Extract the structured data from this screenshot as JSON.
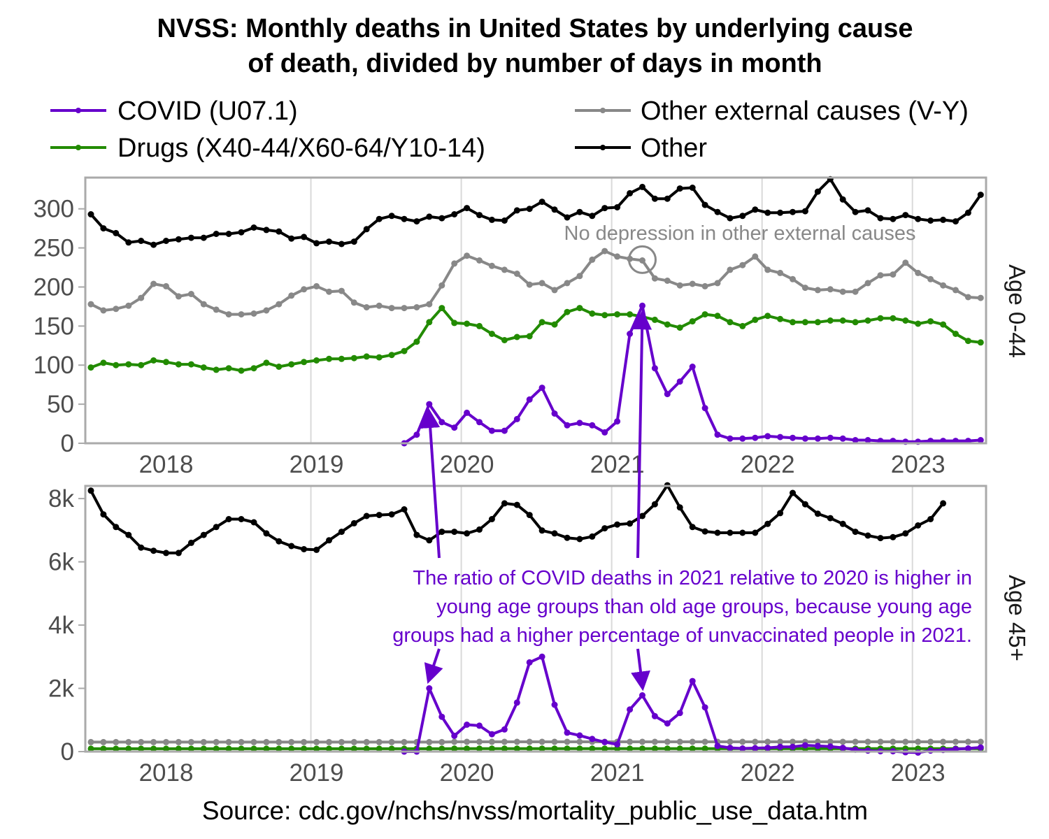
{
  "chart_data": {
    "type": "line",
    "title": "NVSS: Monthly deaths in United States by underlying cause of death, divided by number of days in month",
    "title_lines": [
      "NVSS: Monthly deaths in United States by underlying cause",
      "of death, divided by number of days in month"
    ],
    "caption": "Source: cdc.gov/nchs/nvss/mortality_public_use_data.htm",
    "legend_position": "top",
    "legend": [
      {
        "key": "covid",
        "label": "COVID (U07.1)",
        "color": "#6600cc"
      },
      {
        "key": "drugs",
        "label": "Drugs (X40-44/X60-64/Y10-14)",
        "color": "#228b00"
      },
      {
        "key": "other_external",
        "label": "Other external causes (V-Y)",
        "color": "#888888"
      },
      {
        "key": "other",
        "label": "Other",
        "color": "#000000"
      }
    ],
    "x": {
      "start": "2017-07",
      "end": "2023-06",
      "frequency": "monthly",
      "count": 72,
      "ticks": [
        {
          "label": "2018",
          "month_index": 6
        },
        {
          "label": "2019",
          "month_index": 18
        },
        {
          "label": "2020",
          "month_index": 30
        },
        {
          "label": "2021",
          "month_index": 42
        },
        {
          "label": "2022",
          "month_index": 54
        },
        {
          "label": "2023",
          "month_index": 66
        }
      ],
      "gridlines_at_month_index": [
        18,
        30,
        42,
        54,
        66,
        78
      ],
      "gridlines_note": "vertical gridlines at January of 2019..2023"
    },
    "panels": [
      {
        "strip": "Age 0-44",
        "ylim": [
          0,
          340
        ],
        "yticks": [
          {
            "value": 0,
            "label": "0"
          },
          {
            "value": 50,
            "label": "50"
          },
          {
            "value": 100,
            "label": "100"
          },
          {
            "value": 150,
            "label": "150"
          },
          {
            "value": 200,
            "label": "200"
          },
          {
            "value": 250,
            "label": "250"
          },
          {
            "value": 300,
            "label": "300"
          }
        ],
        "series": {
          "other": [
            293,
            275,
            269,
            257,
            259,
            254,
            259,
            261,
            263,
            263,
            268,
            268,
            270,
            276,
            273,
            271,
            262,
            264,
            256,
            258,
            255,
            258,
            274,
            287,
            291,
            287,
            284,
            290,
            288,
            293,
            301,
            292,
            286,
            285,
            298,
            300,
            309,
            299,
            289,
            296,
            291,
            301,
            302,
            320,
            328,
            313,
            313,
            326,
            327,
            305,
            296,
            288,
            291,
            299,
            295,
            295,
            296,
            297,
            322,
            338,
            312,
            296,
            298,
            288,
            287,
            292,
            287,
            285,
            286,
            284,
            295,
            318
          ],
          "other_external": [
            178,
            170,
            172,
            176,
            186,
            204,
            201,
            188,
            191,
            178,
            171,
            165,
            165,
            166,
            170,
            178,
            189,
            197,
            201,
            194,
            195,
            180,
            174,
            176,
            173,
            173,
            174,
            178,
            202,
            230,
            240,
            234,
            227,
            222,
            217,
            203,
            205,
            196,
            205,
            214,
            235,
            246,
            239,
            236,
            234,
            211,
            208,
            202,
            204,
            201,
            205,
            222,
            228,
            239,
            222,
            218,
            210,
            199,
            196,
            197,
            194,
            194,
            205,
            215,
            216,
            231,
            218,
            210,
            202,
            196,
            187,
            186
          ],
          "drugs": [
            97,
            103,
            100,
            101,
            100,
            106,
            104,
            101,
            101,
            97,
            94,
            96,
            93,
            96,
            103,
            98,
            101,
            104,
            106,
            108,
            108,
            109,
            111,
            110,
            113,
            118,
            130,
            155,
            173,
            154,
            153,
            150,
            140,
            132,
            136,
            137,
            155,
            152,
            168,
            173,
            166,
            164,
            165,
            165,
            162,
            158,
            152,
            148,
            156,
            165,
            163,
            155,
            150,
            158,
            163,
            159,
            155,
            155,
            155,
            157,
            157,
            155,
            157,
            160,
            160,
            157,
            153,
            156,
            152,
            140,
            131,
            129
          ],
          "covid": [
            null,
            null,
            null,
            null,
            null,
            null,
            null,
            null,
            null,
            null,
            null,
            null,
            null,
            null,
            null,
            null,
            null,
            null,
            null,
            null,
            null,
            null,
            null,
            null,
            null,
            0,
            11,
            50,
            27,
            20,
            39,
            27,
            16,
            16,
            31,
            56,
            71,
            38,
            23,
            26,
            23,
            14,
            28,
            140,
            176,
            96,
            63,
            79,
            98,
            45,
            11,
            6,
            6,
            7,
            9,
            8,
            7,
            6,
            6,
            7,
            6,
            4,
            4,
            3,
            3,
            2,
            2,
            3,
            3,
            3,
            3,
            4
          ]
        }
      },
      {
        "strip": "Age 45+",
        "ylim": [
          0,
          8400
        ],
        "yticks": [
          {
            "value": 0,
            "label": "0"
          },
          {
            "value": 2000,
            "label": "2k"
          },
          {
            "value": 4000,
            "label": "4k"
          },
          {
            "value": 6000,
            "label": "6k"
          },
          {
            "value": 8000,
            "label": "8k"
          }
        ],
        "series": {
          "other": [
            8250,
            7500,
            7100,
            6850,
            6450,
            6350,
            6280,
            6280,
            6600,
            6850,
            7100,
            7350,
            7350,
            7250,
            6900,
            6650,
            6500,
            6400,
            6380,
            6680,
            6950,
            7220,
            7450,
            7480,
            7500,
            7660,
            6850,
            6680,
            6950,
            6950,
            6900,
            7020,
            7350,
            7850,
            7800,
            7480,
            6990,
            6900,
            6760,
            6720,
            6800,
            7060,
            7180,
            7210,
            7450,
            7820,
            8420,
            7720,
            7100,
            6960,
            6920,
            6920,
            6920,
            6920,
            7200,
            7540,
            8180,
            7820,
            7520,
            7380,
            7200,
            6950,
            6830,
            6750,
            6780,
            6900,
            7150,
            7350,
            7850,
            null,
            null,
            null
          ],
          "other_external": [
            300,
            300,
            300,
            300,
            300,
            300,
            300,
            300,
            300,
            300,
            300,
            300,
            300,
            300,
            300,
            300,
            300,
            300,
            300,
            300,
            300,
            300,
            300,
            300,
            300,
            300,
            300,
            300,
            300,
            310,
            310,
            310,
            310,
            310,
            310,
            310,
            310,
            310,
            310,
            310,
            310,
            310,
            310,
            310,
            310,
            310,
            310,
            310,
            310,
            310,
            310,
            310,
            310,
            310,
            310,
            310,
            310,
            310,
            310,
            310,
            310,
            310,
            310,
            310,
            310,
            310,
            310,
            310,
            310,
            310,
            310,
            310
          ],
          "drugs": [
            90,
            90,
            90,
            90,
            90,
            90,
            90,
            90,
            90,
            90,
            90,
            90,
            90,
            90,
            90,
            90,
            90,
            90,
            90,
            90,
            90,
            90,
            90,
            90,
            90,
            90,
            90,
            90,
            90,
            95,
            95,
            95,
            95,
            95,
            95,
            95,
            95,
            95,
            95,
            95,
            95,
            95,
            95,
            95,
            95,
            95,
            95,
            95,
            95,
            95,
            95,
            95,
            95,
            95,
            95,
            95,
            95,
            95,
            95,
            95,
            95,
            95,
            95,
            95,
            95,
            95,
            95,
            95,
            95,
            95,
            95,
            95
          ],
          "covid": [
            null,
            null,
            null,
            null,
            null,
            null,
            null,
            null,
            null,
            null,
            null,
            null,
            null,
            null,
            null,
            null,
            null,
            null,
            null,
            null,
            null,
            null,
            null,
            null,
            null,
            0,
            0,
            2000,
            1100,
            500,
            850,
            820,
            550,
            700,
            1550,
            2820,
            3000,
            1480,
            600,
            510,
            400,
            300,
            230,
            1330,
            1780,
            1120,
            890,
            1220,
            2230,
            1400,
            180,
            120,
            100,
            110,
            120,
            150,
            150,
            200,
            180,
            160,
            120,
            60,
            30,
            10,
            10,
            -20,
            -30,
            30,
            50,
            80,
            100,
            130
          ]
        }
      }
    ],
    "annotations": {
      "top_panel_text": "No depression in other external causes",
      "top_panel_circle": {
        "panel": "Age 0-44",
        "month_index": 44,
        "value": 235
      },
      "bottom_text_lines": [
        "The ratio of COVID deaths in 2021 relative to 2020 is higher in",
        "young age groups than old age groups, because young age",
        "groups had a higher percentage of unvaccinated people in 2021."
      ],
      "arrows": [
        {
          "to_panel": "Age 0-44",
          "to_month_index": 27,
          "to_value": 50
        },
        {
          "to_panel": "Age 45+",
          "to_month_index": 27,
          "to_value": 2000
        },
        {
          "to_panel": "Age 0-44",
          "to_month_index": 44,
          "to_value": 176
        },
        {
          "to_panel": "Age 45+",
          "to_month_index": 44,
          "to_value": 1780
        }
      ],
      "annotation_color": "#6600cc",
      "annotation_gray": "#888888"
    }
  }
}
